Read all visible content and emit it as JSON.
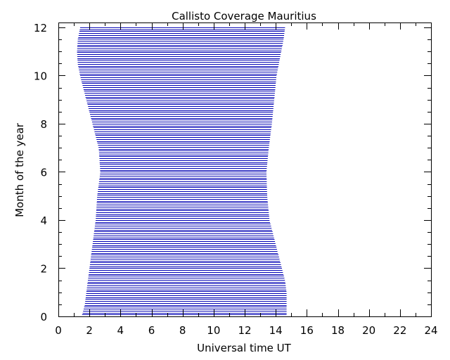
{
  "chart_data": {
    "type": "area",
    "title": "Callisto Coverage Mauritius",
    "xlabel": "Universal time UT",
    "ylabel": "Month of the year",
    "xlim": [
      0,
      24
    ],
    "ylim": [
      0,
      12.2
    ],
    "xticks": [
      0,
      2,
      4,
      6,
      8,
      10,
      12,
      14,
      16,
      18,
      20,
      22,
      24
    ],
    "yticks": [
      0,
      2,
      4,
      6,
      8,
      10,
      12
    ],
    "x_minor_step": 1,
    "y_minor_step": 0.5,
    "grid": false,
    "legend": "none",
    "fill_color": "#0000b4",
    "coverage_sample_step": 0.08,
    "coverage_profile": [
      {
        "month": 0.0,
        "start": 1.5,
        "end": 14.7
      },
      {
        "month": 0.5,
        "start": 1.7,
        "end": 14.7
      },
      {
        "month": 1.0,
        "start": 1.8,
        "end": 14.7
      },
      {
        "month": 1.5,
        "start": 1.9,
        "end": 14.6
      },
      {
        "month": 2.0,
        "start": 2.0,
        "end": 14.4
      },
      {
        "month": 2.5,
        "start": 2.1,
        "end": 14.2
      },
      {
        "month": 3.0,
        "start": 2.2,
        "end": 14.0
      },
      {
        "month": 4.0,
        "start": 2.4,
        "end": 13.6
      },
      {
        "month": 5.0,
        "start": 2.5,
        "end": 13.45
      },
      {
        "month": 6.0,
        "start": 2.7,
        "end": 13.4
      },
      {
        "month": 7.0,
        "start": 2.6,
        "end": 13.55
      },
      {
        "month": 8.0,
        "start": 2.2,
        "end": 13.75
      },
      {
        "month": 9.0,
        "start": 1.8,
        "end": 13.9
      },
      {
        "month": 10.0,
        "start": 1.4,
        "end": 14.05
      },
      {
        "month": 10.5,
        "start": 1.25,
        "end": 14.2
      },
      {
        "month": 11.0,
        "start": 1.2,
        "end": 14.35
      },
      {
        "month": 11.5,
        "start": 1.25,
        "end": 14.5
      },
      {
        "month": 12.0,
        "start": 1.4,
        "end": 14.6
      }
    ]
  }
}
